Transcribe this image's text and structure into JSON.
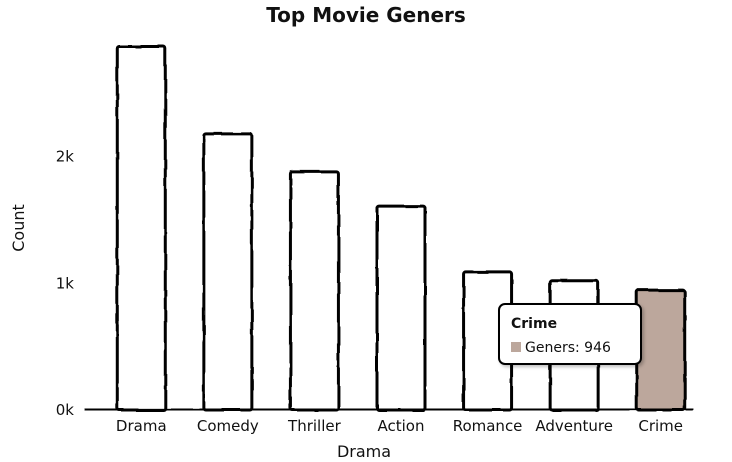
{
  "chart_data": {
    "type": "bar",
    "title": "Top Movie Geners",
    "xlabel": "Drama",
    "ylabel": "Count",
    "categories": [
      "Drama",
      "Comedy",
      "Thriller",
      "Action",
      "Romance",
      "Adventure",
      "Crime"
    ],
    "series": [
      {
        "name": "Geners",
        "values": [
          2870,
          2180,
          1880,
          1610,
          1090,
          1020,
          946
        ]
      }
    ],
    "ylim": [
      0,
      3000
    ],
    "yticks": [
      0,
      1000,
      2000
    ],
    "ytick_labels": [
      "0k",
      "1k",
      "2k"
    ],
    "grid": false,
    "highlight_index": 6,
    "colors": {
      "bar_fill": "#ffffff",
      "highlight_fill": "#bca79c",
      "stroke": "#000000"
    },
    "tooltip": {
      "title": "Crime",
      "label": "Geners",
      "value": "946"
    }
  }
}
